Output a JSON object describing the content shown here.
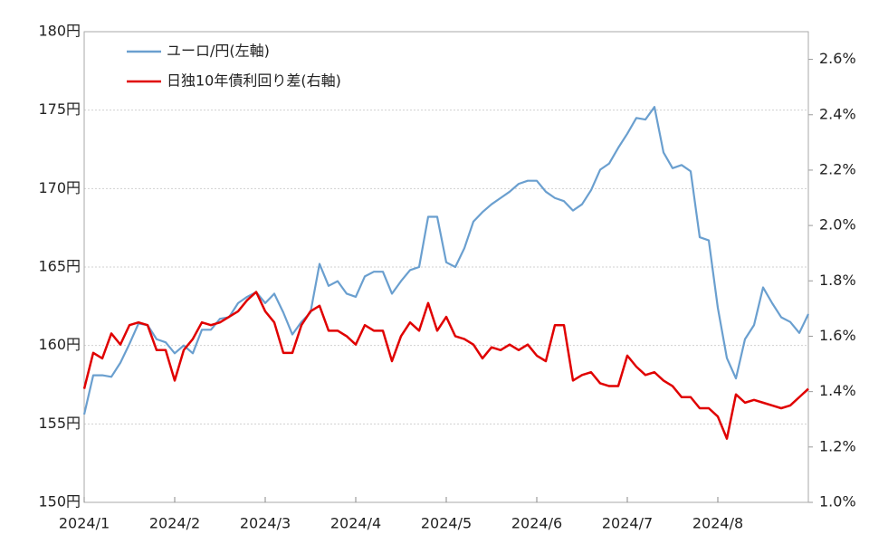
{
  "chart_data": {
    "type": "line",
    "legend": "upper left",
    "grid": true,
    "categories": [
      "2024/1",
      null,
      null,
      null,
      null,
      null,
      null,
      null,
      null,
      null,
      "2024/2",
      null,
      null,
      null,
      null,
      null,
      null,
      null,
      null,
      null,
      "2024/3",
      null,
      null,
      null,
      null,
      null,
      null,
      null,
      null,
      null,
      "2024/4",
      null,
      null,
      null,
      null,
      null,
      null,
      null,
      null,
      null,
      "2024/5",
      null,
      null,
      null,
      null,
      null,
      null,
      null,
      null,
      null,
      "2024/6",
      null,
      null,
      null,
      null,
      null,
      null,
      null,
      null,
      null,
      "2024/7",
      null,
      null,
      null,
      null,
      null,
      null,
      null,
      null,
      null,
      "2024/8",
      null,
      null,
      null,
      null,
      null,
      null,
      null,
      null,
      null,
      null
    ],
    "ylim": [
      150,
      180
    ],
    "yticks": [
      {
        "value": 150,
        "label": "150円"
      },
      {
        "value": 155,
        "label": "155円"
      },
      {
        "value": 160,
        "label": "160円"
      },
      {
        "value": 165,
        "label": "165円"
      },
      {
        "value": 170,
        "label": "170円"
      },
      {
        "value": 175,
        "label": "175円"
      },
      {
        "value": 180,
        "label": "180円"
      }
    ],
    "y2lim": [
      1.0,
      2.7
    ],
    "y2ticks": [
      {
        "value": 1.0,
        "label": "1.0%"
      },
      {
        "value": 1.2,
        "label": "1.2%"
      },
      {
        "value": 1.4,
        "label": "1.4%"
      },
      {
        "value": 1.6,
        "label": "1.6%"
      },
      {
        "value": 1.8,
        "label": "1.8%"
      },
      {
        "value": 2.0,
        "label": "2.0%"
      },
      {
        "value": 2.2,
        "label": "2.2%"
      },
      {
        "value": 2.4,
        "label": "2.4%"
      },
      {
        "value": 2.6,
        "label": "2.6%"
      }
    ],
    "series": [
      {
        "name": "ユーロ/円(左軸)",
        "color": "#6a9fcf",
        "axis": "y",
        "values": [
          155.6,
          158.1,
          158.1,
          158.0,
          158.9,
          160.1,
          161.4,
          161.3,
          160.4,
          160.2,
          159.5,
          160.0,
          159.5,
          161.0,
          161.0,
          161.7,
          161.8,
          162.7,
          163.1,
          163.4,
          162.7,
          163.3,
          162.1,
          160.7,
          161.5,
          162.1,
          165.2,
          163.8,
          164.1,
          163.3,
          163.1,
          164.4,
          164.7,
          164.7,
          163.3,
          164.1,
          164.8,
          165.0,
          168.2,
          168.2,
          165.3,
          165.0,
          166.2,
          167.9,
          168.5,
          169.0,
          169.4,
          169.8,
          170.3,
          170.5,
          170.5,
          169.8,
          169.4,
          169.2,
          168.6,
          169.0,
          169.9,
          171.2,
          171.6,
          172.6,
          173.5,
          174.5,
          174.4,
          175.2,
          172.3,
          171.3,
          171.5,
          171.1,
          166.9,
          166.7,
          162.4,
          159.2,
          157.9,
          160.4,
          161.3,
          163.7,
          162.7,
          161.8,
          161.5,
          160.8,
          162.0
        ]
      },
      {
        "name": "日独10年債利回り差(右軸)",
        "color": "#e00000",
        "axis": "y2",
        "values": [
          1.41,
          1.54,
          1.52,
          1.61,
          1.57,
          1.64,
          1.65,
          1.64,
          1.55,
          1.55,
          1.44,
          1.55,
          1.59,
          1.65,
          1.64,
          1.65,
          1.67,
          1.69,
          1.73,
          1.76,
          1.69,
          1.65,
          1.54,
          1.54,
          1.64,
          1.69,
          1.71,
          1.62,
          1.62,
          1.6,
          1.57,
          1.64,
          1.62,
          1.62,
          1.51,
          1.6,
          1.65,
          1.62,
          1.72,
          1.62,
          1.67,
          1.6,
          1.59,
          1.57,
          1.52,
          1.56,
          1.55,
          1.57,
          1.55,
          1.57,
          1.53,
          1.51,
          1.64,
          1.64,
          1.44,
          1.46,
          1.47,
          1.43,
          1.42,
          1.42,
          1.53,
          1.49,
          1.46,
          1.47,
          1.44,
          1.42,
          1.38,
          1.38,
          1.34,
          1.34,
          1.31,
          1.23,
          1.39,
          1.36,
          1.37,
          1.36,
          1.35,
          1.34,
          1.35,
          1.38,
          1.41
        ]
      }
    ]
  }
}
